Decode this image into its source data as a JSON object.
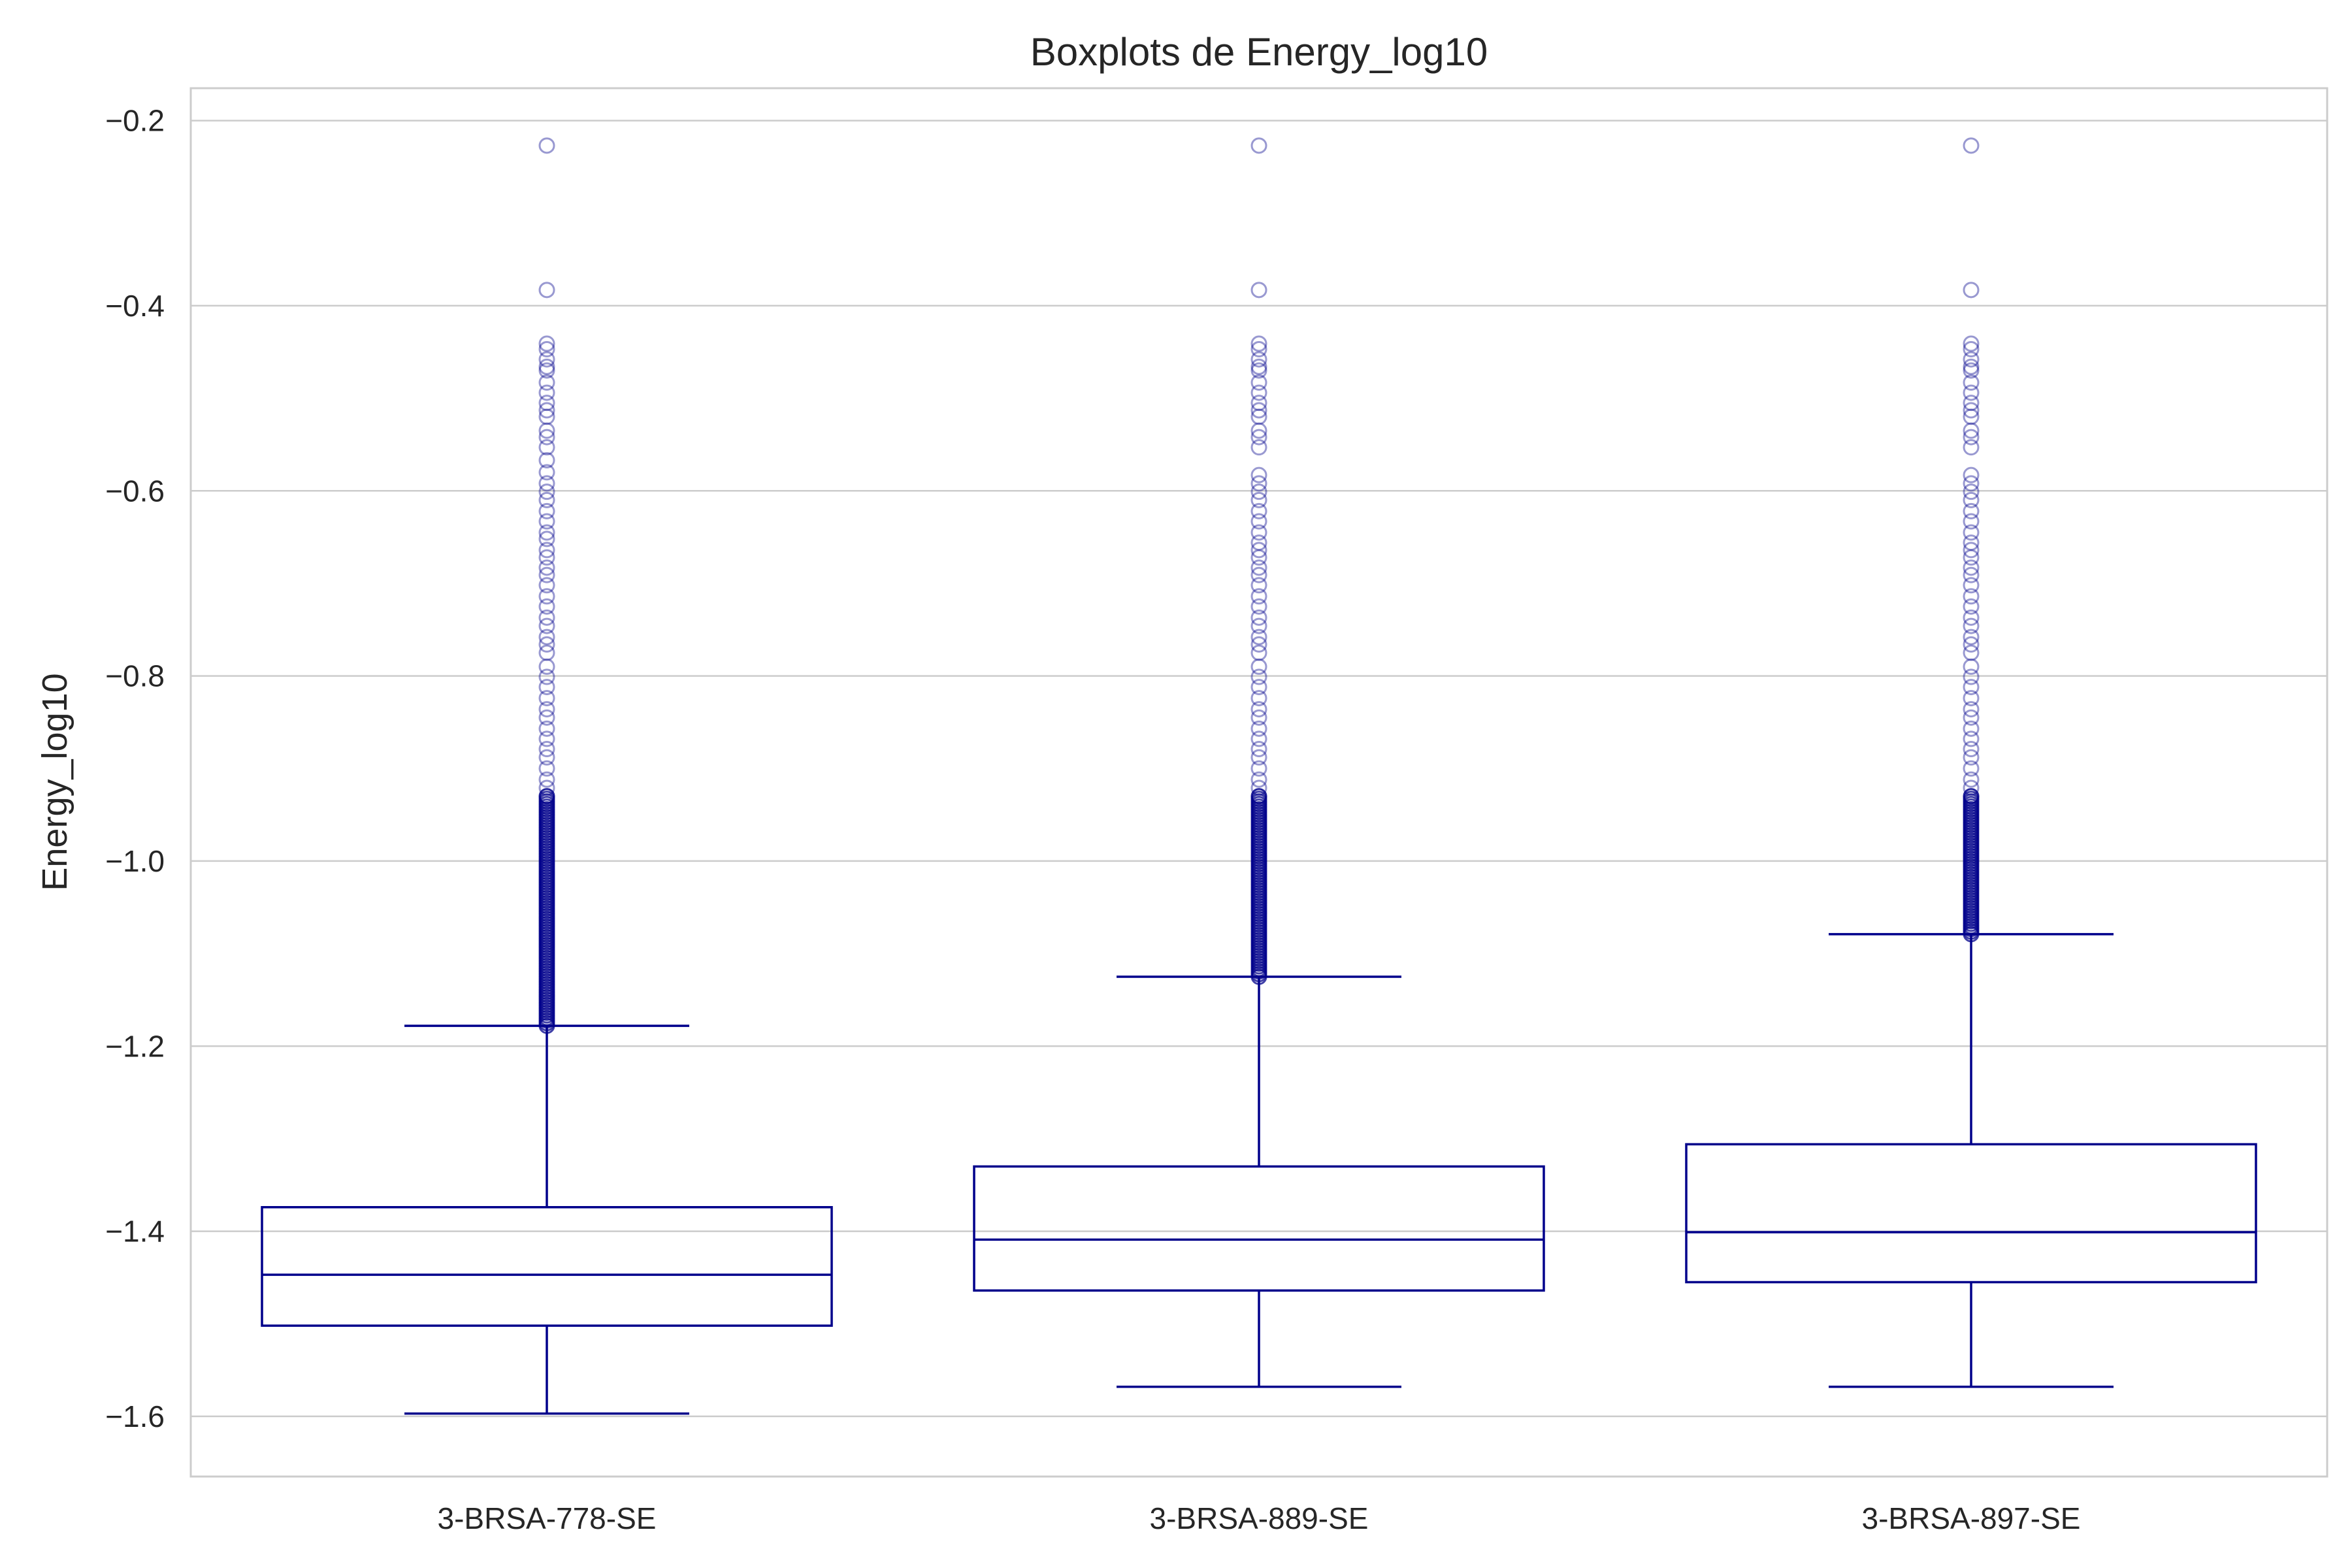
{
  "chart_data": {
    "type": "boxplot",
    "title": "Boxplots de Energy_log10",
    "xlabel": "",
    "ylabel": "Energy_log10",
    "ylim": [
      -1.665,
      -0.165
    ],
    "yticks": [
      -0.2,
      -0.4,
      -0.6,
      -0.8,
      -1.0,
      -1.2,
      -1.4,
      -1.6
    ],
    "ytick_labels": [
      "−0.2",
      "−0.4",
      "−0.6",
      "−0.8",
      "−1.0",
      "−1.2",
      "−1.4",
      "−1.6"
    ],
    "grid": "horizontal",
    "color": "#00008b",
    "categories": [
      "3-BRSA-778-SE",
      "3-BRSA-889-SE",
      "3-BRSA-897-SE"
    ],
    "boxes": [
      {
        "label": "3-BRSA-778-SE",
        "whisker_low": -1.597,
        "q1": -1.502,
        "median": -1.447,
        "q3": -1.374,
        "whisker_high": -1.178,
        "outliers": [
          -0.227,
          -0.383,
          -0.441,
          -0.447,
          -0.458,
          -0.466,
          -0.47,
          -0.483,
          -0.494,
          -0.505,
          -0.513,
          -0.52,
          -0.535,
          -0.542,
          -0.553,
          -0.567,
          -0.58,
          -0.592,
          -0.601,
          -0.61,
          -0.622,
          -0.633,
          -0.645,
          -0.652,
          -0.664,
          -0.672,
          -0.683,
          -0.691,
          -0.702,
          -0.714,
          -0.725,
          -0.737,
          -0.746,
          -0.758,
          -0.766,
          -0.775,
          -0.79,
          -0.801,
          -0.812,
          -0.824,
          -0.836,
          -0.845,
          -0.857,
          -0.868,
          -0.879,
          -0.888,
          -0.9,
          -0.912,
          -0.921,
          -0.93
        ]
      },
      {
        "label": "3-BRSA-889-SE",
        "whisker_low": -1.568,
        "q1": -1.464,
        "median": -1.409,
        "q3": -1.33,
        "whisker_high": -1.125,
        "outliers": [
          -0.227,
          -0.383,
          -0.441,
          -0.447,
          -0.458,
          -0.466,
          -0.47,
          -0.483,
          -0.494,
          -0.505,
          -0.513,
          -0.52,
          -0.535,
          -0.542,
          -0.553,
          -0.583,
          -0.592,
          -0.601,
          -0.61,
          -0.622,
          -0.633,
          -0.645,
          -0.656,
          -0.664,
          -0.672,
          -0.683,
          -0.691,
          -0.702,
          -0.714,
          -0.725,
          -0.737,
          -0.746,
          -0.758,
          -0.766,
          -0.775,
          -0.79,
          -0.801,
          -0.812,
          -0.824,
          -0.836,
          -0.845,
          -0.857,
          -0.868,
          -0.879,
          -0.888,
          -0.9,
          -0.912,
          -0.921,
          -0.93
        ]
      },
      {
        "label": "3-BRSA-897-SE",
        "whisker_low": -1.568,
        "q1": -1.455,
        "median": -1.401,
        "q3": -1.306,
        "whisker_high": -1.079,
        "outliers": [
          -0.227,
          -0.383,
          -0.441,
          -0.447,
          -0.458,
          -0.466,
          -0.47,
          -0.483,
          -0.494,
          -0.505,
          -0.513,
          -0.52,
          -0.535,
          -0.542,
          -0.553,
          -0.583,
          -0.592,
          -0.601,
          -0.61,
          -0.622,
          -0.633,
          -0.645,
          -0.656,
          -0.664,
          -0.672,
          -0.683,
          -0.691,
          -0.702,
          -0.714,
          -0.725,
          -0.737,
          -0.746,
          -0.758,
          -0.766,
          -0.775,
          -0.79,
          -0.801,
          -0.812,
          -0.824,
          -0.836,
          -0.845,
          -0.857,
          -0.868,
          -0.879,
          -0.888,
          -0.9,
          -0.912,
          -0.921,
          -0.93
        ]
      }
    ]
  }
}
